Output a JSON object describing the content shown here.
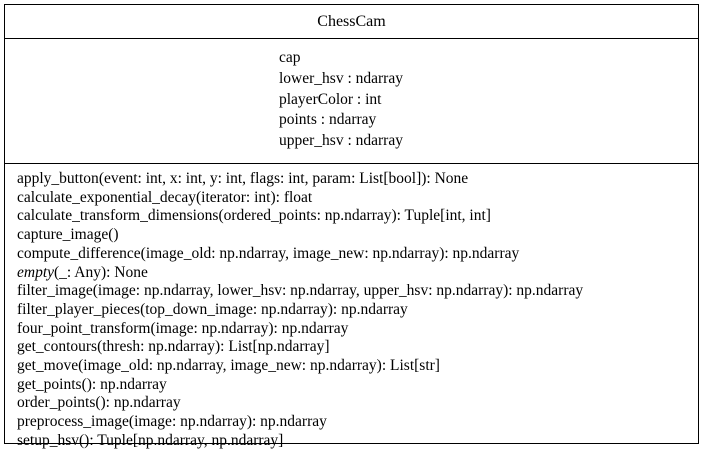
{
  "class_box": {
    "name": "ChessCam",
    "attributes": [
      "cap",
      "lower_hsv : ndarray",
      "playerColor : int",
      "points : ndarray",
      "upper_hsv : ndarray"
    ],
    "methods": [
      {
        "name": "apply_button",
        "signature": "(event: int, x: int, y: int, flags: int, param: List[bool]): None",
        "italic": false
      },
      {
        "name": "calculate_exponential_decay",
        "signature": "(iterator: int): float",
        "italic": false
      },
      {
        "name": "calculate_transform_dimensions",
        "signature": "(ordered_points: np.ndarray): Tuple[int, int]",
        "italic": false
      },
      {
        "name": "capture_image",
        "signature": "()",
        "italic": false
      },
      {
        "name": "compute_difference",
        "signature": "(image_old: np.ndarray, image_new: np.ndarray): np.ndarray",
        "italic": false
      },
      {
        "name": "empty",
        "signature": "(_: Any): None",
        "italic": true
      },
      {
        "name": "filter_image",
        "signature": "(image: np.ndarray, lower_hsv: np.ndarray, upper_hsv: np.ndarray): np.ndarray",
        "italic": false
      },
      {
        "name": "filter_player_pieces",
        "signature": "(top_down_image: np.ndarray): np.ndarray",
        "italic": false
      },
      {
        "name": "four_point_transform",
        "signature": "(image: np.ndarray): np.ndarray",
        "italic": false
      },
      {
        "name": "get_contours",
        "signature": "(thresh: np.ndarray): List[np.ndarray]",
        "italic": false
      },
      {
        "name": "get_move",
        "signature": "(image_old: np.ndarray, image_new: np.ndarray): List[str]",
        "italic": false
      },
      {
        "name": "get_points",
        "signature": "(): np.ndarray",
        "italic": false
      },
      {
        "name": "order_points",
        "signature": "(): np.ndarray",
        "italic": false
      },
      {
        "name": "preprocess_image",
        "signature": "(image: np.ndarray): np.ndarray",
        "italic": false
      },
      {
        "name": "setup_hsv",
        "signature": "(): Tuple[np.ndarray, np.ndarray]",
        "italic": false
      }
    ]
  }
}
